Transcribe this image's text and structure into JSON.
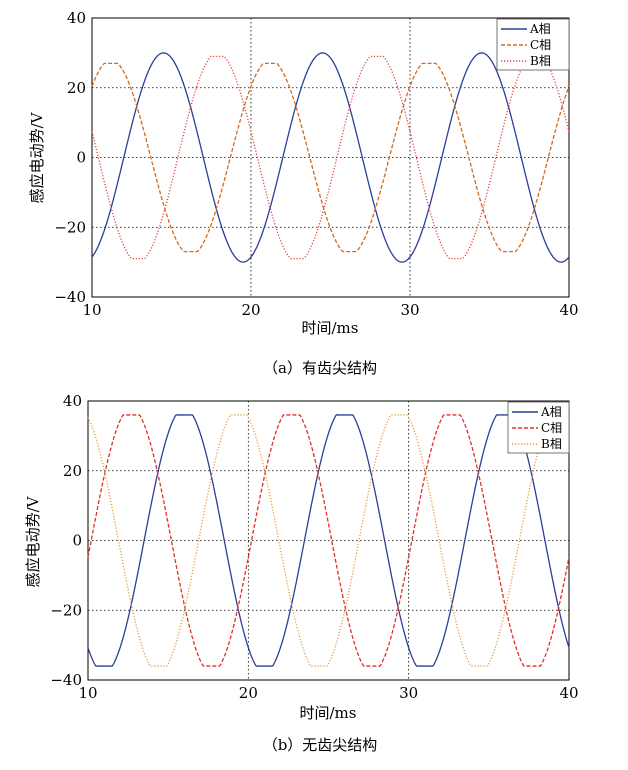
{
  "chart_data": [
    {
      "type": "line",
      "caption": "（a）有齿尖结构",
      "xlabel": "时间/ms",
      "ylabel": "感应电动势/V",
      "xlim": [
        10,
        40
      ],
      "ylim": [
        -40,
        40
      ],
      "xticks": [
        "10",
        "20",
        "30",
        "40"
      ],
      "yticks": [
        "40",
        "20",
        "0",
        "−20",
        "−40"
      ],
      "grid": true,
      "legend_position": "top-right",
      "period_ms": 10,
      "series": [
        {
          "name": "A相",
          "color": "#2b3f9a",
          "dash": "solid",
          "amplitude": 30,
          "peak_at": 14.5,
          "clip": 30
        },
        {
          "name": "C相",
          "color": "#d2691e",
          "dash": "dashed",
          "amplitude": 28,
          "peak_at": 11.2,
          "clip": 27
        },
        {
          "name": "B相",
          "color": "#e8443a",
          "dash": "dotted",
          "amplitude": 30,
          "peak_at": 17.9,
          "clip": 29
        }
      ]
    },
    {
      "type": "line",
      "caption": "（b）无齿尖结构",
      "xlabel": "时间/ms",
      "ylabel": "感应电动势/V",
      "xlim": [
        10,
        40
      ],
      "ylim": [
        -40,
        40
      ],
      "xticks": [
        "10",
        "20",
        "30",
        "40"
      ],
      "yticks": [
        "40",
        "20",
        "0",
        "−20",
        "−40"
      ],
      "grid": true,
      "legend_position": "top-right",
      "period_ms": 10,
      "series": [
        {
          "name": "A相",
          "color": "#2b3f9a",
          "dash": "solid",
          "amplitude": 38,
          "peak_at": 16.0,
          "clip": 36
        },
        {
          "name": "C相",
          "color": "#e0302a",
          "dash": "dashed",
          "amplitude": 38,
          "peak_at": 12.7,
          "clip": 36
        },
        {
          "name": "B相",
          "color": "#e89a3c",
          "dash": "dotted",
          "amplitude": 38,
          "peak_at": 19.4,
          "clip": 36
        }
      ]
    }
  ]
}
